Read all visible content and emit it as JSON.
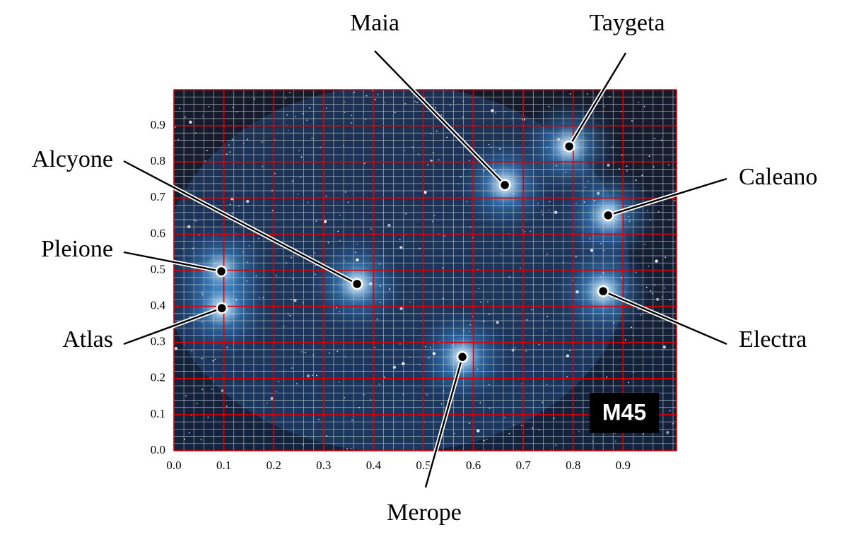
{
  "chart_data": {
    "type": "scatter",
    "xlim": [
      0,
      1
    ],
    "ylim": [
      0,
      1
    ],
    "xticks": [
      {
        "value": 0,
        "label": "0.0"
      },
      0.1,
      0.2,
      0.3,
      0.4,
      0.5,
      0.6,
      0.7,
      0.8,
      0.9
    ],
    "yticks": [
      {
        "value": 0,
        "label": "0.0"
      },
      0.1,
      0.2,
      0.3,
      0.4,
      0.5,
      0.6,
      0.7,
      0.8,
      0.9
    ],
    "grid": true,
    "grid_color": "#e00000",
    "badge": "M45",
    "points": [
      {
        "label": "Maia",
        "x": 0.663,
        "y": 0.736
      },
      {
        "label": "Taygeta",
        "x": 0.792,
        "y": 0.843
      },
      {
        "label": "Alcyone",
        "x": 0.367,
        "y": 0.462
      },
      {
        "label": "Caleano",
        "x": 0.87,
        "y": 0.652
      },
      {
        "label": "Pleione",
        "x": 0.095,
        "y": 0.497
      },
      {
        "label": "Electra",
        "x": 0.86,
        "y": 0.442
      },
      {
        "label": "Atlas",
        "x": 0.096,
        "y": 0.395
      },
      {
        "label": "Merope",
        "x": 0.578,
        "y": 0.26
      }
    ]
  }
}
